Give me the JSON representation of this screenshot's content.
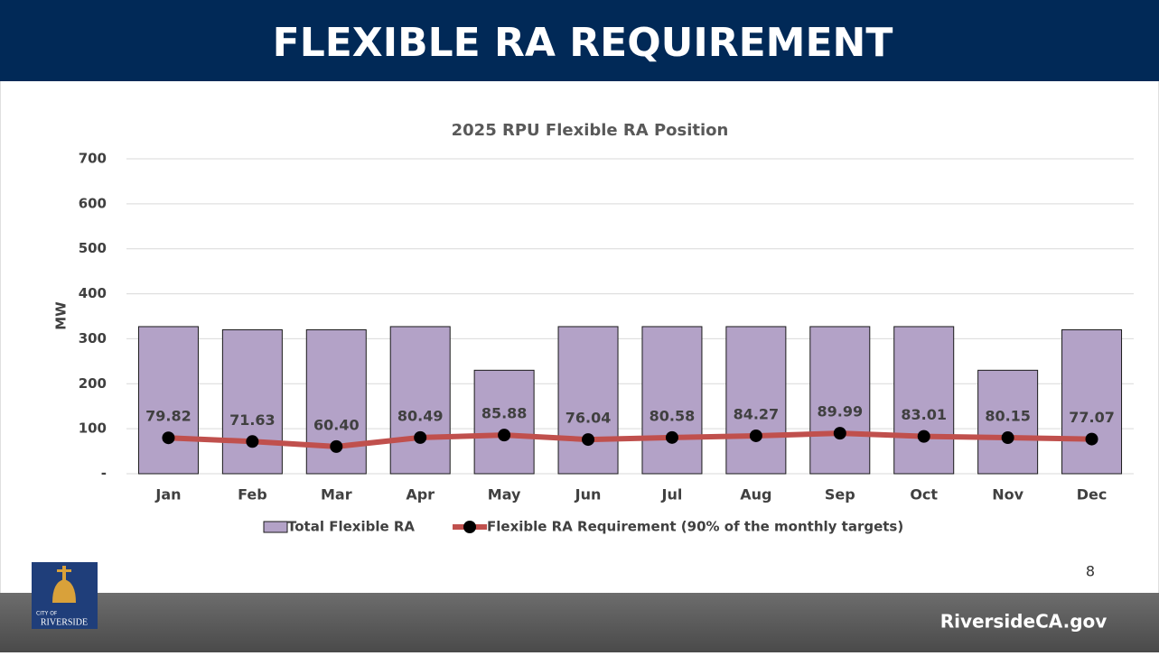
{
  "header": {
    "title": "FLEXIBLE RA REQUIREMENT"
  },
  "chart_data": {
    "type": "bar_line",
    "title": "2025 RPU Flexible RA Position",
    "y_label": "MW",
    "categories": [
      "Jan",
      "Feb",
      "Mar",
      "Apr",
      "May",
      "Jun",
      "Jul",
      "Aug",
      "Sep",
      "Oct",
      "Nov",
      "Dec"
    ],
    "series": [
      {
        "name": "Total Flexible RA",
        "type": "bar",
        "color": "#b3a2c7",
        "values": [
          327,
          320,
          320,
          327,
          230,
          327,
          327,
          327,
          327,
          327,
          230,
          320
        ]
      },
      {
        "name": "Flexible RA Requirement (90% of the monthly targets)",
        "type": "line",
        "color": "#c0504d",
        "marker_color": "#000000",
        "values": [
          79.82,
          71.63,
          60.4,
          80.49,
          85.88,
          76.04,
          80.58,
          84.27,
          89.99,
          83.01,
          80.15,
          77.07
        ],
        "value_labels": [
          "79.82",
          "71.63",
          "60.40",
          "80.49",
          "85.88",
          "76.04",
          "80.58",
          "84.27",
          "89.99",
          "83.01",
          "80.15",
          "77.07"
        ]
      }
    ],
    "ylim": [
      0,
      700
    ],
    "yticks": [
      {
        "value": 0,
        "label": "-"
      },
      100,
      200,
      300,
      400,
      500,
      600,
      700
    ],
    "grid": true,
    "legend": "bottom"
  },
  "page_number": "8",
  "logo": {
    "line1": "CITY OF",
    "line2": "RIVERSIDE"
  },
  "footer": {
    "site": "RiversideCA.gov"
  }
}
